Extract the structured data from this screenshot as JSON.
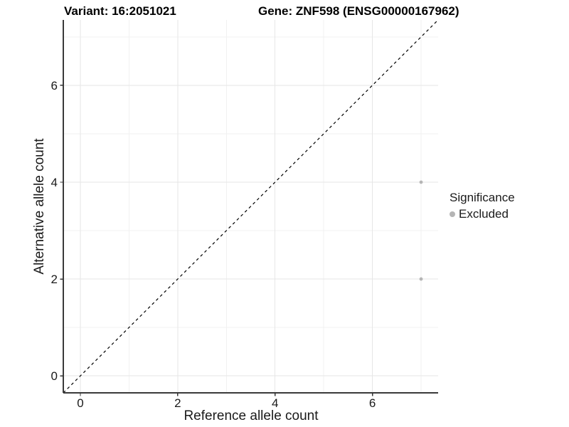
{
  "figure": {
    "title_left": "Variant: 16:2051021",
    "title_right": "Gene: ZNF598 (ENSG00000167962)"
  },
  "chart_data": {
    "type": "scatter",
    "title_left": "Variant: 16:2051021",
    "title_right": "Gene: ZNF598 (ENSG00000167962)",
    "xlabel": "Reference allele count",
    "ylabel": "Alternative allele count",
    "xlim": [
      -0.35,
      7.35
    ],
    "ylim": [
      -0.35,
      7.35
    ],
    "x_major_ticks": [
      0,
      2,
      4,
      6
    ],
    "y_major_ticks": [
      0,
      2,
      4,
      6
    ],
    "x_minor_gridlines": [
      1,
      3,
      5,
      7
    ],
    "y_minor_gridlines": [
      1,
      3,
      5,
      7
    ],
    "grid": "major+minor",
    "series": [
      {
        "name": "Excluded",
        "color": "#b5b5b5",
        "points": [
          {
            "x": 7,
            "y": 4
          },
          {
            "x": 7,
            "y": 2
          }
        ]
      }
    ],
    "reference_line": {
      "type": "identity",
      "style": "dashed",
      "color": "#000000",
      "from": [
        -0.35,
        -0.35
      ],
      "to": [
        7.35,
        7.35
      ]
    },
    "legend": {
      "title": "Significance",
      "position": "right",
      "entries": [
        {
          "label": "Excluded",
          "color": "#b5b5b5"
        }
      ]
    }
  },
  "colors": {
    "background": "#ffffff",
    "grid_major": "#e6e6e6",
    "grid_minor": "#f1f1f1",
    "axis_line": "#3a3a3a",
    "tick_mark": "#333333",
    "tick_label": "#1a1a1a",
    "point": "#b5b5b5"
  }
}
